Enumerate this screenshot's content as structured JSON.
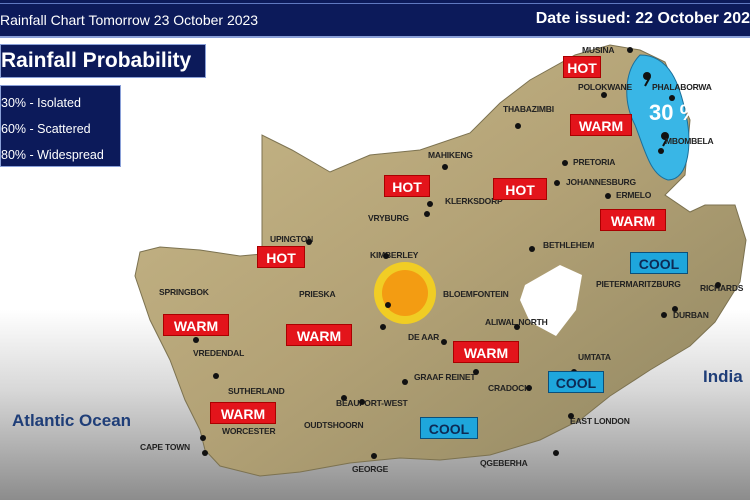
{
  "header": {
    "title": "Rainfall Chart Tomorrow 23 October 2023",
    "date_issued": "Date issued: 22 October 202"
  },
  "legend": {
    "title": "Rainfall Probability",
    "items": [
      "30% - Isolated",
      "60% - Scattered",
      "80% - Widespread"
    ]
  },
  "colors": {
    "header_bg": "#0c1a5a",
    "hot_warm": "#e3141b",
    "cool": "#1ea6dc",
    "rain_area": "#39b6e6",
    "land": "#b8a678"
  },
  "rain_area": {
    "probability_label": "30 %",
    "icon": "raindrop-icon"
  },
  "weather_icon": "sun-icon",
  "oceans": {
    "atlantic": "Atlantic Ocean",
    "indian": "India"
  },
  "cities": [
    "MUSINA",
    "POLOKWANE",
    "PHALABORWA",
    "THABAZIMBI",
    "MBOMBELA",
    "MAHIKENG",
    "PRETORIA",
    "JOHANNESBURG",
    "KLERKSDORP",
    "ERMELO",
    "VRYBURG",
    "UPINGTON",
    "KIMBERLEY",
    "BETHLEHEM",
    "SPRINGBOK",
    "PRIESKA",
    "BLOEMFONTEIN",
    "PIETERMARITZBURG",
    "RICHARDS",
    "DURBAN",
    "ALIWAL NORTH",
    "DE AAR",
    "VREDENDAL",
    "UMTATA",
    "GRAAF REINET",
    "CRADOCK",
    "SUTHERLAND",
    "BEAUFORT-WEST",
    "WORCESTER",
    "OUDTSHOORN",
    "EAST LONDON",
    "CAPE TOWN",
    "GEORGE",
    "QGEBERHA"
  ],
  "tags": [
    "HOT",
    "WARM",
    "HOT",
    "HOT",
    "WARM",
    "HOT",
    "COOL",
    "WARM",
    "WARM",
    "WARM",
    "COOL",
    "WARM",
    "COOL"
  ]
}
